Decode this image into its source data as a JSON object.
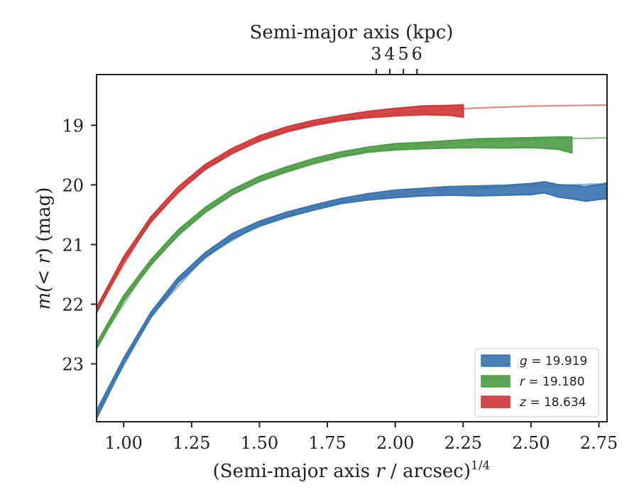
{
  "chart_data": {
    "type": "line",
    "xlabel_prefix": "(Semi-major axis ",
    "xlabel_var": "r",
    "xlabel_suffix": " / arcsec)",
    "xlabel_exp": "1/4",
    "ylabel_prefix": "m(",
    "ylabel_var": "< r",
    "ylabel_suffix": ") (mag)",
    "top_xlabel": "Semi-major axis (kpc)",
    "xlim": [
      0.9,
      2.78
    ],
    "ylim": [
      23.97,
      18.15
    ],
    "y_inverted": true,
    "x_ticks": [
      "1.00",
      "1.25",
      "1.50",
      "1.75",
      "2.00",
      "2.25",
      "2.50",
      "2.75"
    ],
    "x_tick_values": [
      1.0,
      1.25,
      1.5,
      1.75,
      2.0,
      2.25,
      2.5,
      2.75
    ],
    "y_ticks": [
      "19",
      "20",
      "21",
      "22",
      "23"
    ],
    "y_tick_values": [
      19,
      20,
      21,
      22,
      23
    ],
    "top_x_ticks": [
      "3",
      "4",
      "5",
      "6"
    ],
    "top_x_tick_positions": [
      1.93,
      1.98,
      2.03,
      2.08
    ],
    "legend_position": "lower-right",
    "series": [
      {
        "name": "g = 19.919",
        "legend_var": "g",
        "legend_value": "= 19.919",
        "color": "#3b75af",
        "x": [
          0.9,
          1.0,
          1.1,
          1.2,
          1.3,
          1.4,
          1.5,
          1.6,
          1.7,
          1.8,
          1.9,
          2.0,
          2.1,
          2.2,
          2.3,
          2.4,
          2.5,
          2.55,
          2.6,
          2.65,
          2.7,
          2.75,
          2.78
        ],
        "y": [
          23.85,
          22.95,
          22.18,
          21.6,
          21.18,
          20.86,
          20.65,
          20.5,
          20.38,
          20.27,
          20.2,
          20.15,
          20.12,
          20.1,
          20.1,
          20.09,
          20.07,
          20.04,
          20.1,
          20.12,
          20.15,
          20.12,
          20.1
        ],
        "band_width": [
          0.06,
          0.04,
          0.04,
          0.04,
          0.04,
          0.04,
          0.04,
          0.04,
          0.04,
          0.04,
          0.05,
          0.06,
          0.06,
          0.07,
          0.08,
          0.08,
          0.09,
          0.09,
          0.1,
          0.11,
          0.12,
          0.12,
          0.13
        ],
        "fit_x": [
          0.9,
          1.1,
          1.3,
          1.5,
          1.7,
          1.9,
          2.1,
          2.3,
          2.5,
          2.78
        ],
        "fit_y": [
          23.85,
          22.2,
          21.2,
          20.66,
          20.37,
          20.2,
          20.11,
          20.06,
          20.02,
          19.98
        ]
      },
      {
        "name": "r = 19.180",
        "legend_var": "r",
        "legend_value": "= 19.180",
        "color": "#4f9e4a",
        "x": [
          0.9,
          1.0,
          1.1,
          1.2,
          1.3,
          1.4,
          1.5,
          1.6,
          1.7,
          1.8,
          1.9,
          2.0,
          2.1,
          2.2,
          2.3,
          2.4,
          2.5,
          2.6,
          2.65
        ],
        "y": [
          22.7,
          21.9,
          21.3,
          20.8,
          20.42,
          20.12,
          19.9,
          19.74,
          19.6,
          19.49,
          19.41,
          19.36,
          19.34,
          19.32,
          19.3,
          19.3,
          19.29,
          19.3,
          19.33
        ],
        "band_width": [
          0.04,
          0.04,
          0.04,
          0.04,
          0.04,
          0.04,
          0.04,
          0.04,
          0.04,
          0.04,
          0.04,
          0.05,
          0.05,
          0.06,
          0.07,
          0.08,
          0.08,
          0.1,
          0.13
        ],
        "fit_x": [
          0.9,
          1.1,
          1.3,
          1.5,
          1.7,
          1.9,
          2.1,
          2.3,
          2.5,
          2.78
        ],
        "fit_y": [
          22.7,
          21.3,
          20.42,
          19.9,
          19.6,
          19.42,
          19.33,
          19.28,
          19.24,
          19.21
        ]
      },
      {
        "name": "z = 18.634",
        "legend_var": "z",
        "legend_value": "= 18.634",
        "color": "#d03a3a",
        "x": [
          0.9,
          1.0,
          1.1,
          1.2,
          1.3,
          1.4,
          1.5,
          1.6,
          1.7,
          1.8,
          1.9,
          2.0,
          2.1,
          2.2,
          2.25
        ],
        "y": [
          22.1,
          21.25,
          20.58,
          20.08,
          19.7,
          19.43,
          19.22,
          19.07,
          18.96,
          18.88,
          18.82,
          18.78,
          18.75,
          18.75,
          18.76
        ],
        "band_width": [
          0.04,
          0.04,
          0.04,
          0.04,
          0.04,
          0.04,
          0.04,
          0.04,
          0.04,
          0.04,
          0.05,
          0.06,
          0.07,
          0.08,
          0.1
        ],
        "fit_x": [
          0.9,
          1.1,
          1.3,
          1.5,
          1.7,
          1.9,
          2.1,
          2.3,
          2.5,
          2.78
        ],
        "fit_y": [
          22.1,
          20.58,
          19.7,
          19.22,
          18.96,
          18.83,
          18.76,
          18.71,
          18.68,
          18.66
        ]
      }
    ]
  }
}
